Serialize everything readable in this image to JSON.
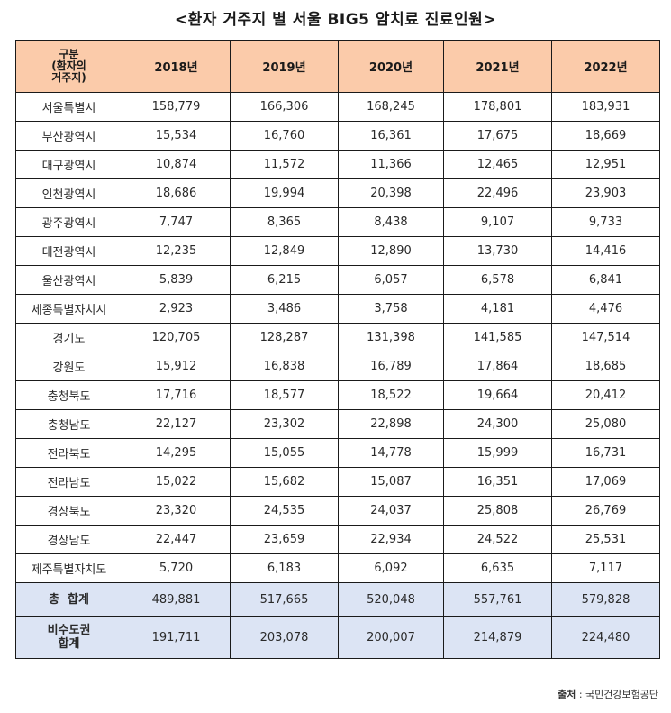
{
  "title": "<환자 거주지 별 서울 BIG5 암치료 진료인원>",
  "table": {
    "category_header": "구분\n(환자의\n거주지)",
    "category_header_lines": [
      "구분",
      "(환자의",
      "거주지)"
    ],
    "years": [
      "2018년",
      "2019년",
      "2020년",
      "2021년",
      "2022년"
    ],
    "rows": [
      {
        "region": "서울특별시",
        "values": [
          "158,779",
          "166,306",
          "168,245",
          "178,801",
          "183,931"
        ]
      },
      {
        "region": "부산광역시",
        "values": [
          "15,534",
          "16,760",
          "16,361",
          "17,675",
          "18,669"
        ]
      },
      {
        "region": "대구광역시",
        "values": [
          "10,874",
          "11,572",
          "11,366",
          "12,465",
          "12,951"
        ]
      },
      {
        "region": "인천광역시",
        "values": [
          "18,686",
          "19,994",
          "20,398",
          "22,496",
          "23,903"
        ]
      },
      {
        "region": "광주광역시",
        "values": [
          "7,747",
          "8,365",
          "8,438",
          "9,107",
          "9,733"
        ]
      },
      {
        "region": "대전광역시",
        "values": [
          "12,235",
          "12,849",
          "12,890",
          "13,730",
          "14,416"
        ]
      },
      {
        "region": "울산광역시",
        "values": [
          "5,839",
          "6,215",
          "6,057",
          "6,578",
          "6,841"
        ]
      },
      {
        "region": "세종특별자치시",
        "values": [
          "2,923",
          "3,486",
          "3,758",
          "4,181",
          "4,476"
        ]
      },
      {
        "region": "경기도",
        "values": [
          "120,705",
          "128,287",
          "131,398",
          "141,585",
          "147,514"
        ]
      },
      {
        "region": "강원도",
        "values": [
          "15,912",
          "16,838",
          "16,789",
          "17,864",
          "18,685"
        ]
      },
      {
        "region": "충청북도",
        "values": [
          "17,716",
          "18,577",
          "18,522",
          "19,664",
          "20,412"
        ]
      },
      {
        "region": "충청남도",
        "values": [
          "22,127",
          "23,302",
          "22,898",
          "24,300",
          "25,080"
        ]
      },
      {
        "region": "전라북도",
        "values": [
          "14,295",
          "15,055",
          "14,778",
          "15,999",
          "16,731"
        ]
      },
      {
        "region": "전라남도",
        "values": [
          "15,022",
          "15,682",
          "15,087",
          "16,351",
          "17,069"
        ]
      },
      {
        "region": "경상북도",
        "values": [
          "23,320",
          "24,535",
          "24,037",
          "25,808",
          "26,769"
        ]
      },
      {
        "region": "경상남도",
        "values": [
          "22,447",
          "23,659",
          "22,934",
          "24,522",
          "25,531"
        ]
      },
      {
        "region": "제주특별자치도",
        "values": [
          "5,720",
          "6,183",
          "6,092",
          "6,635",
          "7,117"
        ]
      }
    ],
    "total": {
      "label": "총  합계",
      "values": [
        "489,881",
        "517,665",
        "520,048",
        "557,761",
        "579,828"
      ]
    },
    "non_capital_total": {
      "label_lines": [
        "비수도권",
        "합계"
      ],
      "values": [
        "191,711",
        "203,078",
        "200,007",
        "214,879",
        "224,480"
      ]
    }
  },
  "source": {
    "label": "출처",
    "separator": " : ",
    "value": "국민건강보험공단"
  },
  "colors": {
    "header_bg": "#fbcbaa",
    "summary_bg": "#dce4f4",
    "border": "#1a1a1a"
  }
}
